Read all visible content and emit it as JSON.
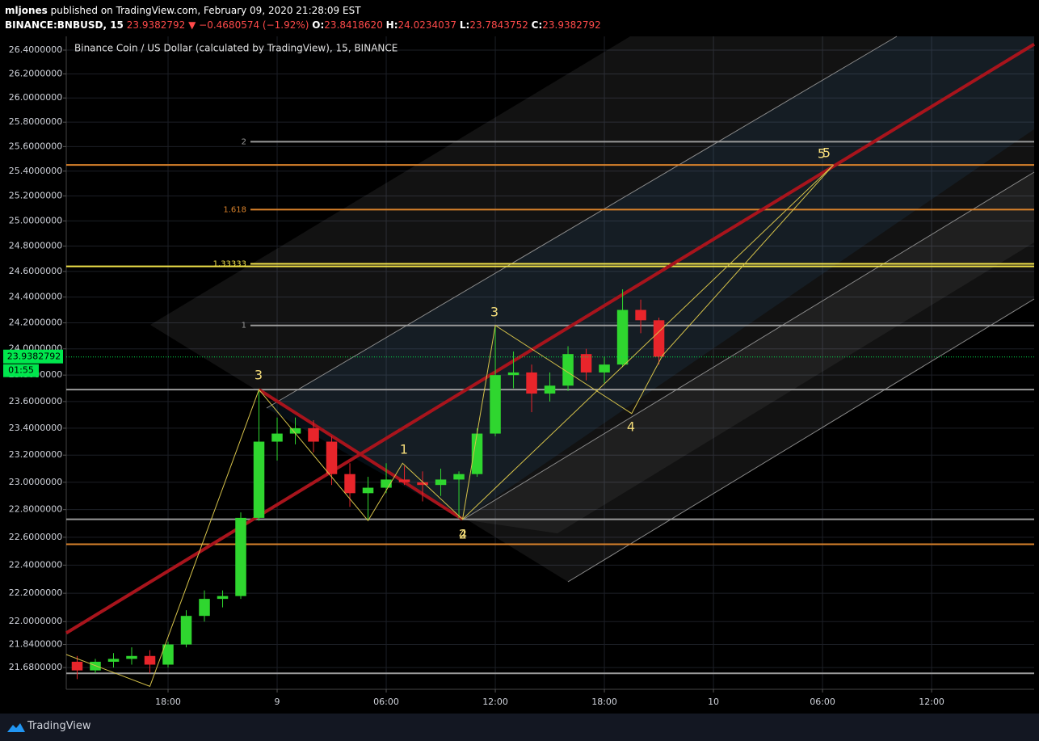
{
  "header": {
    "user": "mljones",
    "published": "published on TradingView.com, February 09, 2020 21:28:09 EST",
    "symbol": "BINANCE:BNBUSD, 15",
    "change": "−0.4680574 (−1.92%)",
    "o_label": "O:",
    "o": "23.8418620",
    "h_label": "H:",
    "h": "24.0234037",
    "l_label": "L:",
    "l": "23.7843752",
    "c_label": "C:"
  },
  "footer": {
    "brand": "TradingView"
  },
  "wave_labels": [
    "3",
    "1",
    "2",
    "4",
    "3",
    "4",
    "5",
    "5"
  ],
  "chart_data": {
    "type": "candlestick",
    "title": "Binance Coin / US Dollar (calculated by TradingView), 15, BINANCE",
    "x": [
      -5,
      -4,
      -3,
      -2,
      -1,
      0,
      1,
      2,
      3,
      4,
      5,
      6,
      7,
      8,
      9,
      10,
      11,
      12,
      13,
      14,
      15,
      16,
      17,
      18,
      19,
      20,
      21,
      22,
      23,
      24,
      25,
      26,
      27
    ],
    "open": [
      21.72,
      21.66,
      21.72,
      21.74,
      21.76,
      21.7,
      21.84,
      22.04,
      22.16,
      22.18,
      22.74,
      23.3,
      23.36,
      23.4,
      23.3,
      23.06,
      22.92,
      22.96,
      23.02,
      23.0,
      22.98,
      23.02,
      23.06,
      23.36,
      23.8,
      23.82,
      23.66,
      23.72,
      23.96,
      23.82,
      23.88,
      24.3,
      24.22
    ],
    "high": [
      21.76,
      21.74,
      21.78,
      21.82,
      21.8,
      21.86,
      22.08,
      22.22,
      22.22,
      22.78,
      23.68,
      23.48,
      23.48,
      23.46,
      23.34,
      23.14,
      23.04,
      23.14,
      23.12,
      23.08,
      23.1,
      23.08,
      23.4,
      24.18,
      23.98,
      23.88,
      23.82,
      24.02,
      24.0,
      23.94,
      24.46,
      24.38,
      24.24
    ],
    "low": [
      21.6,
      21.64,
      21.68,
      21.7,
      21.64,
      21.68,
      21.82,
      22.0,
      22.1,
      22.16,
      22.72,
      23.16,
      23.28,
      23.22,
      22.98,
      22.82,
      22.72,
      22.92,
      22.98,
      22.86,
      22.9,
      22.74,
      23.04,
      23.34,
      23.7,
      23.52,
      23.6,
      23.68,
      23.76,
      23.74,
      23.86,
      24.12,
      23.88
    ],
    "close": [
      21.66,
      21.72,
      21.74,
      21.76,
      21.7,
      21.84,
      22.04,
      22.16,
      22.18,
      22.74,
      23.3,
      23.36,
      23.4,
      23.3,
      23.06,
      22.92,
      22.96,
      23.02,
      23.0,
      22.98,
      23.02,
      23.06,
      23.36,
      23.8,
      23.82,
      23.66,
      23.72,
      23.96,
      23.82,
      23.88,
      24.3,
      24.22,
      23.94
    ],
    "up_color": "#2fd62f",
    "down_color": "#e8252b",
    "log": true,
    "grid": true,
    "xlim": [
      -5.6,
      47.64
    ],
    "ylim": [
      21.53,
      26.516
    ],
    "xticks": [
      {
        "value": 0,
        "label": "18:00"
      },
      {
        "value": 6,
        "label": "9"
      },
      {
        "value": 12,
        "label": "06:00"
      },
      {
        "value": 18,
        "label": "12:00"
      },
      {
        "value": 24,
        "label": "18:00"
      },
      {
        "value": 30,
        "label": "10"
      },
      {
        "value": 36,
        "label": "06:00"
      },
      {
        "value": 42,
        "label": "12:00"
      }
    ],
    "yticks": [
      {
        "value": 26.4,
        "label": "26.4000000"
      },
      {
        "value": 26.2,
        "label": "26.2000000"
      },
      {
        "value": 26.0,
        "label": "26.0000000"
      },
      {
        "value": 25.8,
        "label": "25.8000000"
      },
      {
        "value": 25.6,
        "label": "25.6000000"
      },
      {
        "value": 25.4,
        "label": "25.4000000"
      },
      {
        "value": 25.2,
        "label": "25.2000000"
      },
      {
        "value": 25.0,
        "label": "25.0000000"
      },
      {
        "value": 24.8,
        "label": "24.8000000"
      },
      {
        "value": 24.6,
        "label": "24.6000000"
      },
      {
        "value": 24.4,
        "label": "24.4000000"
      },
      {
        "value": 24.2,
        "label": "24.2000000"
      },
      {
        "value": 24.0,
        "label": "24.0000000"
      },
      {
        "value": 23.8,
        "label": "23.8000000"
      },
      {
        "value": 23.6,
        "label": "23.6000000"
      },
      {
        "value": 23.4,
        "label": "23.4000000"
      },
      {
        "value": 23.2,
        "label": "23.2000000"
      },
      {
        "value": 23.0,
        "label": "23.0000000"
      },
      {
        "value": 22.8,
        "label": "22.8000000"
      },
      {
        "value": 22.6,
        "label": "22.6000000"
      },
      {
        "value": 22.4,
        "label": "22.4000000"
      },
      {
        "value": 22.2,
        "label": "22.2000000"
      },
      {
        "value": 22.0,
        "label": "22.0000000"
      },
      {
        "value": 21.84,
        "label": "21.8400000"
      },
      {
        "value": 21.68,
        "label": "21.6800000"
      }
    ],
    "last_price": 23.9382792,
    "last_price_color": "#00e64d",
    "countdown": "01:55",
    "levels": [
      {
        "value": 25.64,
        "color": "#9a9a9a",
        "label": "2"
      },
      {
        "value": 25.45,
        "color": "#d9822b"
      },
      {
        "value": 25.09,
        "color": "#d9822b",
        "label": "1.618"
      },
      {
        "value": 24.66,
        "color": "#f2e34a",
        "label": "1.33333"
      },
      {
        "value": 24.64,
        "color": "#f2e34a"
      },
      {
        "value": 24.18,
        "color": "#9a9a9a",
        "label": "1"
      },
      {
        "value": 23.69,
        "color": "#9a9a9a"
      },
      {
        "value": 22.73,
        "color": "#9a9a9a"
      },
      {
        "value": 22.55,
        "color": "#d9822b"
      },
      {
        "value": 21.64,
        "color": "#9a9a9a"
      }
    ],
    "trend_lines": [
      {
        "color": "#a8141c",
        "x": [
          -5.6,
          47.64
        ],
        "y": [
          21.92,
          26.45
        ]
      },
      {
        "color": "#a8141c",
        "x": [
          5.0,
          16.2
        ],
        "y": [
          23.69,
          22.73
        ]
      }
    ],
    "wave_lines": [
      {
        "color": "#d6c24a",
        "x": [
          -5.6,
          -1,
          5.0,
          11.0,
          12.9,
          16.2,
          18.0,
          25.5,
          27.2,
          36.6
        ],
        "y": [
          21.77,
          21.55,
          23.69,
          22.72,
          23.14,
          22.73,
          24.18,
          23.51,
          23.95,
          25.45
        ]
      },
      {
        "color": "#d6c24a",
        "x": [
          16.2,
          36.6
        ],
        "y": [
          22.73,
          25.45
        ]
      }
    ]
  }
}
